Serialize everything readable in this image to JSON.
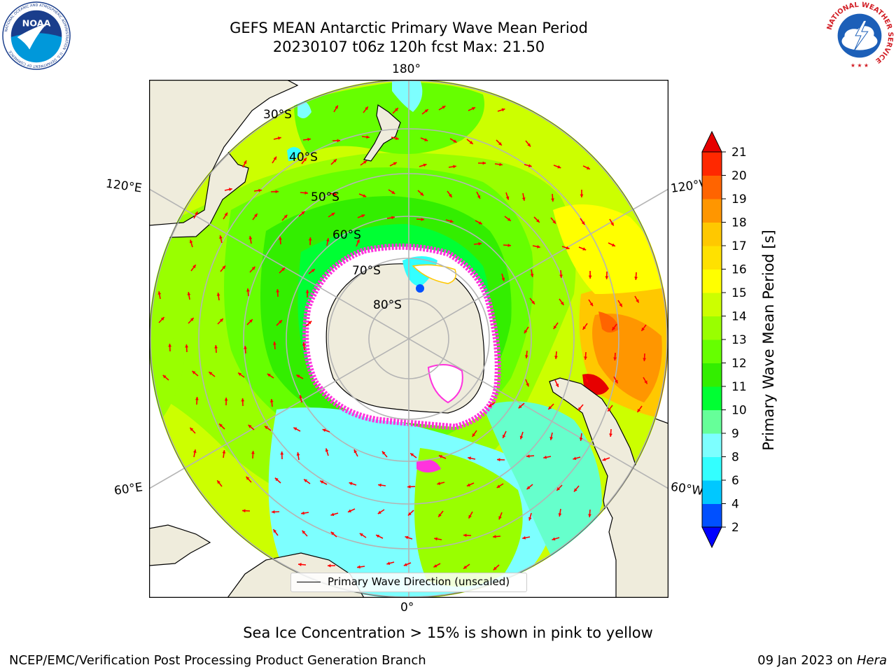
{
  "title": {
    "line1": "GEFS MEAN Antarctic Primary Wave Mean Period",
    "line2": "20230107 t06z 120h fcst   Max: 21.50"
  },
  "map": {
    "projection": "south-polar-stereographic",
    "longitude_labels": {
      "top": "180°",
      "bottom": "0°",
      "left_upper": "120°E",
      "left_lower": "60°E",
      "right_upper": "120°W",
      "right_lower": "60°W"
    },
    "latitude_labels": [
      "30°S",
      "40°S",
      "50°S",
      "60°S",
      "70°S",
      "80°S"
    ],
    "legend": "Primary Wave Direction (unscaled)",
    "colors": {
      "land": "#efecdc",
      "ice_edge": "#ff33dd",
      "arrow": "#ff0000",
      "grid": "#b4b4b4"
    }
  },
  "colorbar": {
    "label": "Primary Wave Mean Period [s]",
    "ticks": [
      "2",
      "4",
      "6",
      "8",
      "9",
      "10",
      "11",
      "12",
      "13",
      "14",
      "15",
      "16",
      "17",
      "18",
      "19",
      "20",
      "21"
    ],
    "colors": [
      "#0050ff",
      "#00c8ff",
      "#33ffff",
      "#7dffff",
      "#66ff99",
      "#00ff33",
      "#33ee00",
      "#66ff00",
      "#99ff00",
      "#ccff00",
      "#ffff00",
      "#ffe100",
      "#ffc800",
      "#ff9600",
      "#ff6400",
      "#ff2800"
    ],
    "under_color": "#0000ff",
    "over_color": "#e60000"
  },
  "note": "Sea Ice Concentration > 15% is shown in pink to yellow",
  "footer": {
    "left": "NCEP/EMC/Verification Post Processing Product Generation Branch",
    "right_date": "09 Jan 2023 on ",
    "right_host": "Hera"
  },
  "logos": {
    "noaa_text": "NOAA",
    "noaa_ring": "NATIONAL OCEANIC AND ATMOSPHERIC ADMINISTRATION · U.S. DEPARTMENT OF COMMERCE",
    "nws_ring": "NATIONAL WEATHER SERVICE"
  }
}
